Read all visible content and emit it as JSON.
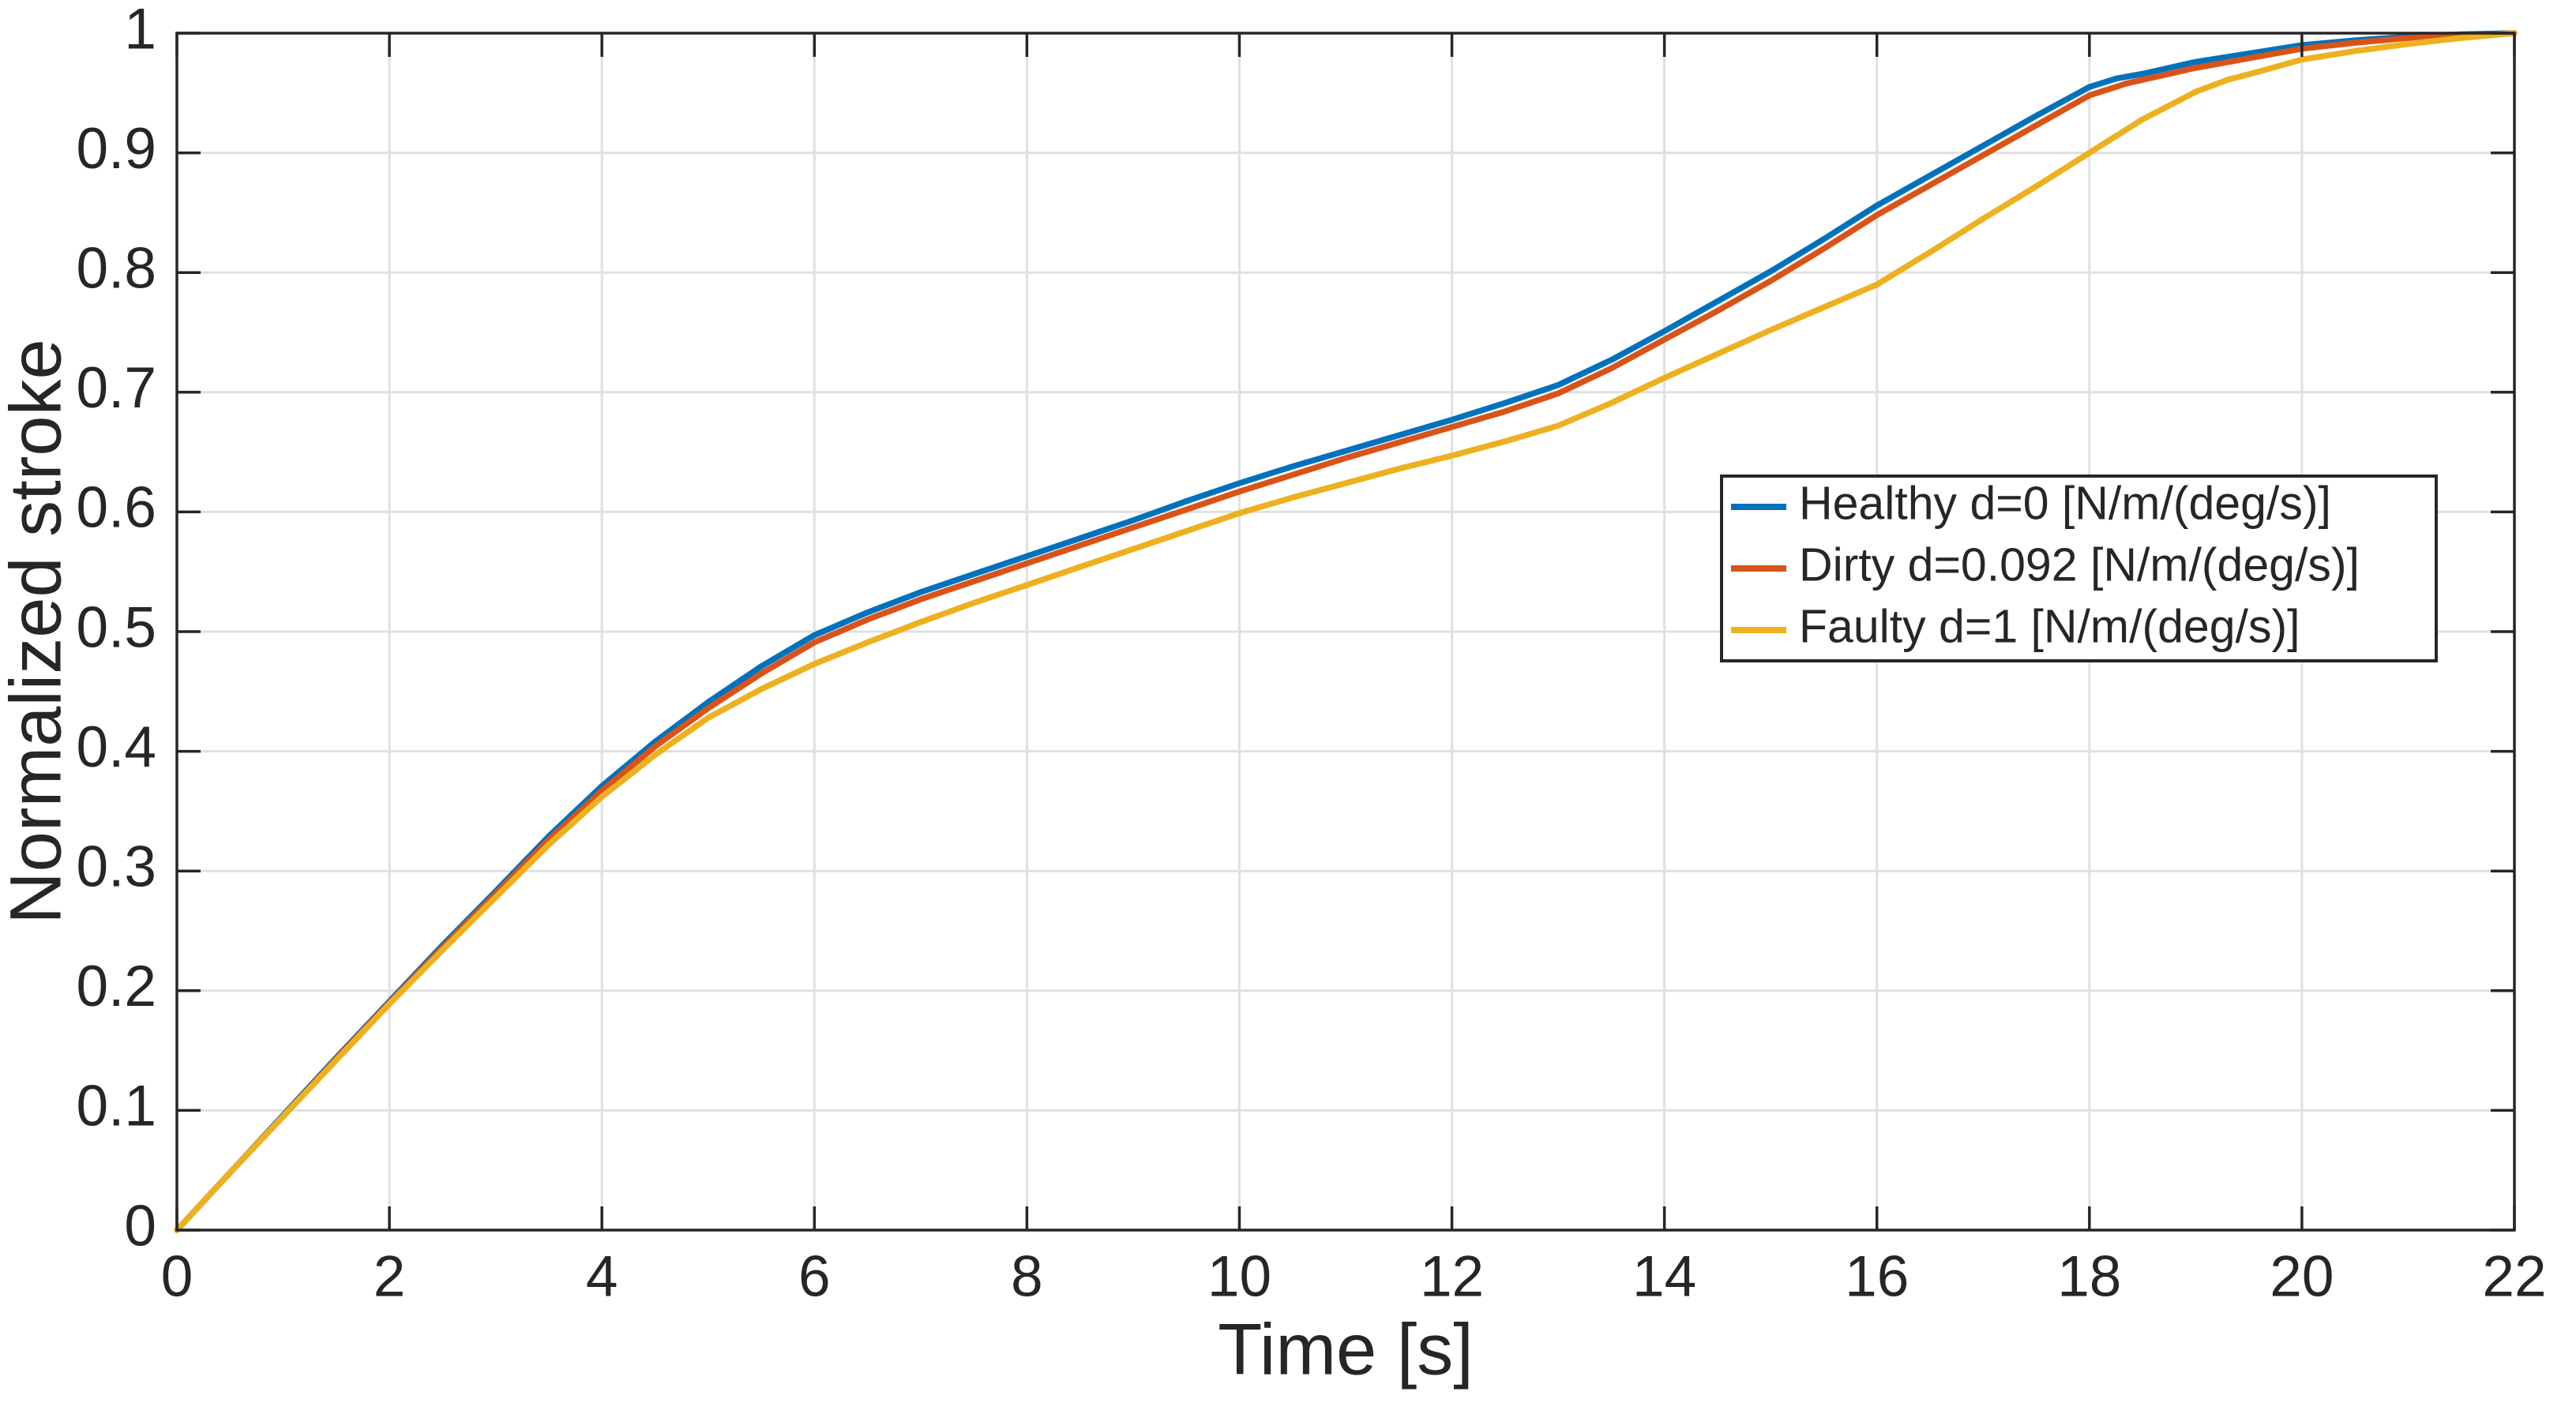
{
  "figure": {
    "background": "#ffffff"
  },
  "chart_data": {
    "type": "line",
    "title": "",
    "xlabel": "Time [s]",
    "ylabel": "Normalized stroke",
    "xlim": [
      0,
      22
    ],
    "ylim": [
      0,
      1
    ],
    "xticks": [
      0,
      2,
      4,
      6,
      8,
      10,
      12,
      14,
      16,
      18,
      20,
      22
    ],
    "yticks": [
      0,
      0.1,
      0.2,
      0.3,
      0.4,
      0.5,
      0.6,
      0.7,
      0.8,
      0.9,
      1
    ],
    "grid": true,
    "grid_color": "#e0e0e0",
    "axis_color": "#262626",
    "legend": {
      "position": "right-middle",
      "background": "#ffffff",
      "border_color": "#262626"
    },
    "series": [
      {
        "name": "Healthy d=0 [N/m/(deg/s)]",
        "slug": "healthy",
        "color": "#0072BD",
        "points": [
          [
            0,
            0
          ],
          [
            0.5,
            0.048
          ],
          [
            1,
            0.096
          ],
          [
            1.5,
            0.144
          ],
          [
            2,
            0.191
          ],
          [
            2.5,
            0.238
          ],
          [
            3,
            0.283
          ],
          [
            3.5,
            0.329
          ],
          [
            4,
            0.371
          ],
          [
            4.5,
            0.408
          ],
          [
            5,
            0.441
          ],
          [
            5.5,
            0.471
          ],
          [
            6,
            0.497
          ],
          [
            6.5,
            0.516
          ],
          [
            7,
            0.533
          ],
          [
            7.5,
            0.548
          ],
          [
            8,
            0.563
          ],
          [
            8.5,
            0.578
          ],
          [
            9,
            0.593
          ],
          [
            9.5,
            0.609
          ],
          [
            10,
            0.624
          ],
          [
            10.5,
            0.638
          ],
          [
            11,
            0.651
          ],
          [
            11.5,
            0.664
          ],
          [
            12,
            0.677
          ],
          [
            12.5,
            0.691
          ],
          [
            13,
            0.706
          ],
          [
            13.5,
            0.727
          ],
          [
            14,
            0.751
          ],
          [
            14.5,
            0.776
          ],
          [
            15,
            0.801
          ],
          [
            15.5,
            0.828
          ],
          [
            16,
            0.856
          ],
          [
            16.5,
            0.881
          ],
          [
            17,
            0.906
          ],
          [
            17.5,
            0.931
          ],
          [
            18,
            0.955
          ],
          [
            18.25,
            0.962
          ],
          [
            18.5,
            0.966
          ],
          [
            19,
            0.976
          ],
          [
            19.5,
            0.983
          ],
          [
            20,
            0.99
          ],
          [
            20.5,
            0.994
          ],
          [
            21,
            0.997
          ],
          [
            21.5,
            0.999
          ],
          [
            22,
            1
          ]
        ]
      },
      {
        "name": "Dirty d=0.092 [N/m/(deg/s)]",
        "slug": "dirty",
        "color": "#D95319",
        "points": [
          [
            0,
            0
          ],
          [
            0.5,
            0.048
          ],
          [
            1,
            0.095
          ],
          [
            1.5,
            0.143
          ],
          [
            2,
            0.19
          ],
          [
            2.5,
            0.236
          ],
          [
            3,
            0.281
          ],
          [
            3.5,
            0.326
          ],
          [
            4,
            0.367
          ],
          [
            4.5,
            0.404
          ],
          [
            5,
            0.436
          ],
          [
            5.5,
            0.465
          ],
          [
            6,
            0.491
          ],
          [
            6.5,
            0.51
          ],
          [
            7,
            0.527
          ],
          [
            7.5,
            0.542
          ],
          [
            8,
            0.557
          ],
          [
            8.5,
            0.572
          ],
          [
            9,
            0.587
          ],
          [
            9.5,
            0.602
          ],
          [
            10,
            0.617
          ],
          [
            10.5,
            0.631
          ],
          [
            11,
            0.645
          ],
          [
            11.5,
            0.658
          ],
          [
            12,
            0.671
          ],
          [
            12.5,
            0.684
          ],
          [
            13,
            0.699
          ],
          [
            13.5,
            0.72
          ],
          [
            14,
            0.744
          ],
          [
            14.5,
            0.768
          ],
          [
            15,
            0.793
          ],
          [
            15.5,
            0.82
          ],
          [
            16,
            0.848
          ],
          [
            16.5,
            0.873
          ],
          [
            17,
            0.898
          ],
          [
            17.5,
            0.923
          ],
          [
            18,
            0.948
          ],
          [
            18.35,
            0.958
          ],
          [
            18.6,
            0.963
          ],
          [
            19,
            0.971
          ],
          [
            19.5,
            0.979
          ],
          [
            20,
            0.987
          ],
          [
            20.5,
            0.992
          ],
          [
            21,
            0.996
          ],
          [
            21.5,
            0.998
          ],
          [
            22,
            1
          ]
        ]
      },
      {
        "name": "Faulty d=1 [N/m/(deg/s)]",
        "slug": "faulty",
        "color": "#EDB120",
        "points": [
          [
            0,
            0
          ],
          [
            0.5,
            0.048
          ],
          [
            1,
            0.095
          ],
          [
            1.5,
            0.142
          ],
          [
            2,
            0.189
          ],
          [
            2.5,
            0.234
          ],
          [
            3,
            0.278
          ],
          [
            3.5,
            0.322
          ],
          [
            4,
            0.362
          ],
          [
            4.5,
            0.397
          ],
          [
            5,
            0.428
          ],
          [
            5.5,
            0.452
          ],
          [
            6,
            0.473
          ],
          [
            6.5,
            0.491
          ],
          [
            7,
            0.508
          ],
          [
            7.5,
            0.524
          ],
          [
            8,
            0.539
          ],
          [
            8.5,
            0.554
          ],
          [
            9,
            0.569
          ],
          [
            9.5,
            0.584
          ],
          [
            10,
            0.599
          ],
          [
            10.5,
            0.612
          ],
          [
            11,
            0.624
          ],
          [
            11.5,
            0.636
          ],
          [
            12,
            0.647
          ],
          [
            12.5,
            0.659
          ],
          [
            13,
            0.672
          ],
          [
            13.5,
            0.691
          ],
          [
            14,
            0.712
          ],
          [
            14.5,
            0.732
          ],
          [
            15,
            0.752
          ],
          [
            15.5,
            0.771
          ],
          [
            16,
            0.79
          ],
          [
            16.5,
            0.817
          ],
          [
            17,
            0.845
          ],
          [
            17.5,
            0.872
          ],
          [
            18,
            0.9
          ],
          [
            18.5,
            0.928
          ],
          [
            19,
            0.951
          ],
          [
            19.3,
            0.961
          ],
          [
            19.6,
            0.968
          ],
          [
            20,
            0.978
          ],
          [
            20.5,
            0.985
          ],
          [
            21,
            0.991
          ],
          [
            21.5,
            0.996
          ],
          [
            22,
            1
          ]
        ]
      }
    ]
  }
}
